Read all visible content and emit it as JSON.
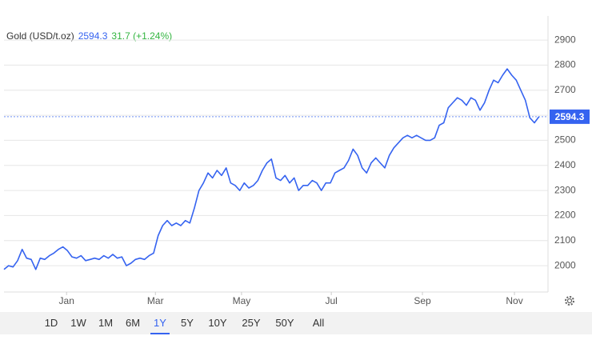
{
  "chart_data": {
    "type": "line",
    "title": "Gold (USD/t.oz)",
    "price": 2594.3,
    "change": "31.7 (+1.24%)",
    "x": [
      0,
      1,
      2,
      3,
      4,
      5,
      6,
      7,
      8,
      9,
      10,
      11,
      12,
      13,
      14,
      15,
      16,
      17,
      18,
      19,
      20,
      21,
      22,
      23,
      24,
      25,
      26,
      27,
      28,
      29,
      30,
      31,
      32,
      33,
      34,
      35,
      36,
      37,
      38,
      39,
      40,
      41,
      42,
      43,
      44,
      45,
      46,
      47,
      48,
      49,
      50,
      51,
      52,
      53,
      54,
      55,
      56,
      57,
      58,
      59,
      60,
      61,
      62,
      63,
      64,
      65,
      66,
      67,
      68,
      69,
      70,
      71,
      72,
      73,
      74,
      75,
      76,
      77,
      78,
      79,
      80,
      81,
      82,
      83,
      84,
      85,
      86,
      87,
      88,
      89,
      90,
      91,
      92,
      93,
      94,
      95,
      96,
      97,
      98,
      99,
      100,
      101,
      102,
      103,
      104,
      105,
      106,
      107,
      108,
      109,
      110,
      111,
      112,
      113,
      114,
      115,
      116,
      117,
      118
    ],
    "series": [
      {
        "name": "Gold",
        "color": "#3563f0",
        "values": [
          1985,
          2000,
          1995,
          2020,
          2065,
          2030,
          2025,
          1985,
          2030,
          2025,
          2040,
          2050,
          2065,
          2075,
          2060,
          2035,
          2030,
          2040,
          2020,
          2025,
          2030,
          2025,
          2040,
          2030,
          2045,
          2030,
          2035,
          2000,
          2010,
          2025,
          2030,
          2025,
          2040,
          2050,
          2120,
          2160,
          2180,
          2160,
          2170,
          2160,
          2180,
          2170,
          2230,
          2300,
          2330,
          2370,
          2350,
          2380,
          2360,
          2390,
          2330,
          2320,
          2300,
          2330,
          2310,
          2320,
          2340,
          2380,
          2410,
          2425,
          2350,
          2340,
          2360,
          2330,
          2350,
          2300,
          2320,
          2320,
          2340,
          2330,
          2300,
          2330,
          2330,
          2370,
          2380,
          2390,
          2420,
          2465,
          2440,
          2390,
          2370,
          2410,
          2430,
          2410,
          2390,
          2440,
          2470,
          2490,
          2510,
          2520,
          2510,
          2520,
          2510,
          2500,
          2500,
          2510,
          2560,
          2570,
          2630,
          2650,
          2670,
          2660,
          2640,
          2670,
          2660,
          2620,
          2650,
          2700,
          2740,
          2730,
          2760,
          2785,
          2760,
          2740,
          2700,
          2660,
          2590,
          2570,
          2594.3
        ]
      }
    ],
    "xlim": [
      0,
      120
    ],
    "xticks": [
      {
        "value": 13.8,
        "label": "Jan"
      },
      {
        "value": 33.4,
        "label": "Mar"
      },
      {
        "value": 52.4,
        "label": "May"
      },
      {
        "value": 72.2,
        "label": "Jul"
      },
      {
        "value": 92.3,
        "label": "Sep"
      },
      {
        "value": 112.6,
        "label": "Nov"
      }
    ],
    "ylim": [
      1895,
      2996
    ],
    "yticks": [
      2000,
      2100,
      2200,
      2300,
      2400,
      2500,
      2600,
      2700,
      2800,
      2900
    ],
    "grid": true,
    "ranges": [
      "1D",
      "1W",
      "1M",
      "6M",
      "1Y",
      "5Y",
      "10Y",
      "25Y",
      "50Y",
      "All"
    ],
    "selected_range": "1Y"
  }
}
